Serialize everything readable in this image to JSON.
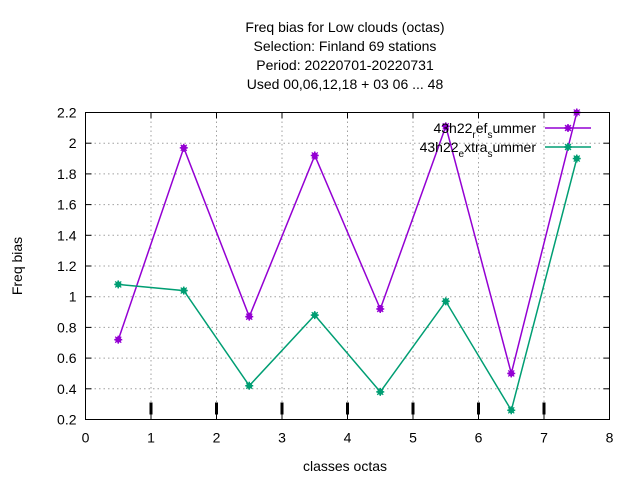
{
  "chart_data": {
    "type": "line",
    "title_lines": [
      "Freq bias  for Low clouds (octas)",
      "Selection: Finland     69 stations",
      "Period: 20220701-20220731",
      "Used  00,06,12,18  + 03 06 ... 48"
    ],
    "xlabel": "classes octas",
    "ylabel": "Freq bias",
    "xlim": [
      0,
      8
    ],
    "ylim": [
      0.2,
      2.2
    ],
    "xticks": [
      0,
      1,
      2,
      3,
      4,
      5,
      6,
      7,
      8
    ],
    "yticks": [
      0.2,
      0.4,
      0.6,
      0.8,
      1,
      1.2,
      1.4,
      1.6,
      1.8,
      2,
      2.2
    ],
    "xtick_labels": [
      "0",
      "1",
      "2",
      "3",
      "4",
      "5",
      "6",
      "7",
      "8"
    ],
    "ytick_labels": [
      "0.2",
      "0.4",
      "0.6",
      "0.8",
      "1",
      "1.2",
      "1.4",
      "1.6",
      "1.8",
      "2",
      "2.2"
    ],
    "grid": true,
    "legend_position": "top-right",
    "series": [
      {
        "name": "43h22_ref_summer",
        "legend_parts": [
          {
            "text": "43h22",
            "sub": false
          },
          {
            "text": "r",
            "sub": true
          },
          {
            "text": "ef",
            "sub": false
          },
          {
            "text": "s",
            "sub": true
          },
          {
            "text": "ummer",
            "sub": false
          }
        ],
        "color": "#9400d3",
        "x": [
          0.5,
          1.5,
          2.5,
          3.5,
          4.5,
          5.5,
          6.5,
          7.5
        ],
        "y": [
          0.72,
          1.97,
          0.87,
          1.92,
          0.92,
          2.11,
          0.5,
          2.2
        ]
      },
      {
        "name": "43h22_extra_summer",
        "legend_parts": [
          {
            "text": "43h22",
            "sub": false
          },
          {
            "text": "e",
            "sub": true
          },
          {
            "text": "xtra",
            "sub": false
          },
          {
            "text": "s",
            "sub": true
          },
          {
            "text": "ummer",
            "sub": false
          }
        ],
        "color": "#009e73",
        "x": [
          0.5,
          1.5,
          2.5,
          3.5,
          4.5,
          5.5,
          6.5,
          7.5
        ],
        "y": [
          1.08,
          1.04,
          0.42,
          0.88,
          0.38,
          0.97,
          0.26,
          1.9
        ]
      }
    ],
    "bottom_bars_x": [
      1,
      2,
      3,
      4,
      5,
      6,
      7
    ]
  }
}
